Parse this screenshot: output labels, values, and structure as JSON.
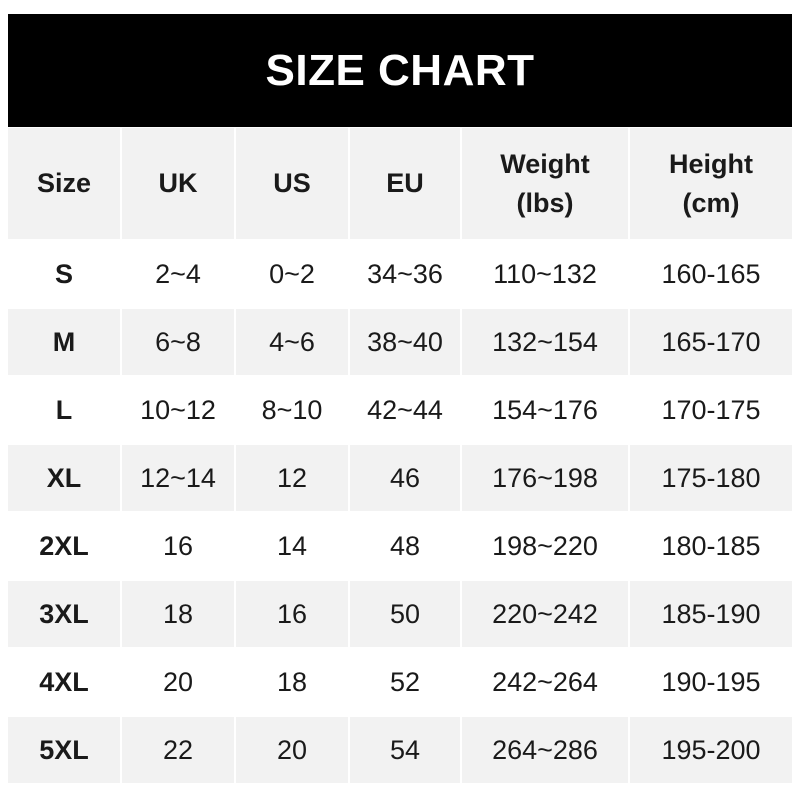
{
  "title": "SIZE CHART",
  "columns": [
    "Size",
    "UK",
    "US",
    "EU",
    "Weight\n(lbs)",
    "Height\n(cm)"
  ],
  "rows": [
    [
      "S",
      "2~4",
      "0~2",
      "34~36",
      "110~132",
      "160-165"
    ],
    [
      "M",
      "6~8",
      "4~6",
      "38~40",
      "132~154",
      "165-170"
    ],
    [
      "L",
      "10~12",
      "8~10",
      "42~44",
      "154~176",
      "170-175"
    ],
    [
      "XL",
      "12~14",
      "12",
      "46",
      "176~198",
      "175-180"
    ],
    [
      "2XL",
      "16",
      "14",
      "48",
      "198~220",
      "180-185"
    ],
    [
      "3XL",
      "18",
      "16",
      "50",
      "220~242",
      "185-190"
    ],
    [
      "4XL",
      "20",
      "18",
      "52",
      "242~264",
      "190-195"
    ],
    [
      "5XL",
      "22",
      "20",
      "54",
      "264~286",
      "195-200"
    ]
  ],
  "colors": {
    "header_bg": "#000000",
    "header_text": "#ffffff",
    "stripe": "#f2f2f2"
  }
}
